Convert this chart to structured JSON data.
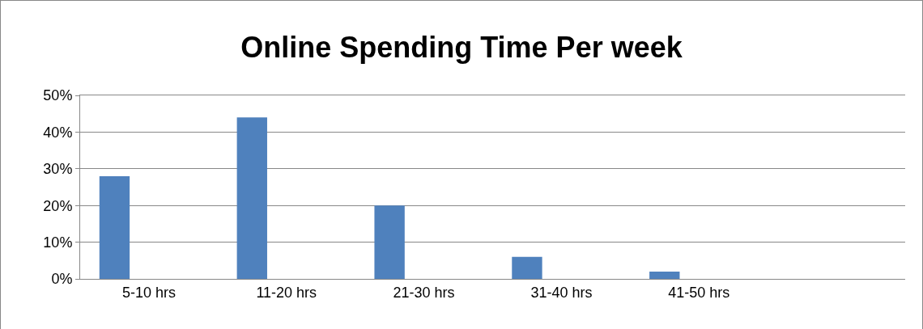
{
  "chart_data": {
    "type": "bar",
    "title": "Online Spending Time Per week",
    "categories": [
      "5-10 hrs",
      "11-20 hrs",
      "21-30 hrs",
      "31-40 hrs",
      "41-50 hrs",
      null
    ],
    "values": [
      28,
      44,
      20,
      6,
      2,
      null
    ],
    "color": "#4f81bd",
    "ylim": [
      0,
      50
    ],
    "yticks": [
      {
        "value": 0,
        "label": "0%"
      },
      {
        "value": 10,
        "label": "10%"
      },
      {
        "value": 20,
        "label": "20%"
      },
      {
        "value": 30,
        "label": "30%"
      },
      {
        "value": 40,
        "label": "40%"
      },
      {
        "value": 50,
        "label": "50%"
      }
    ],
    "grid": "y"
  }
}
